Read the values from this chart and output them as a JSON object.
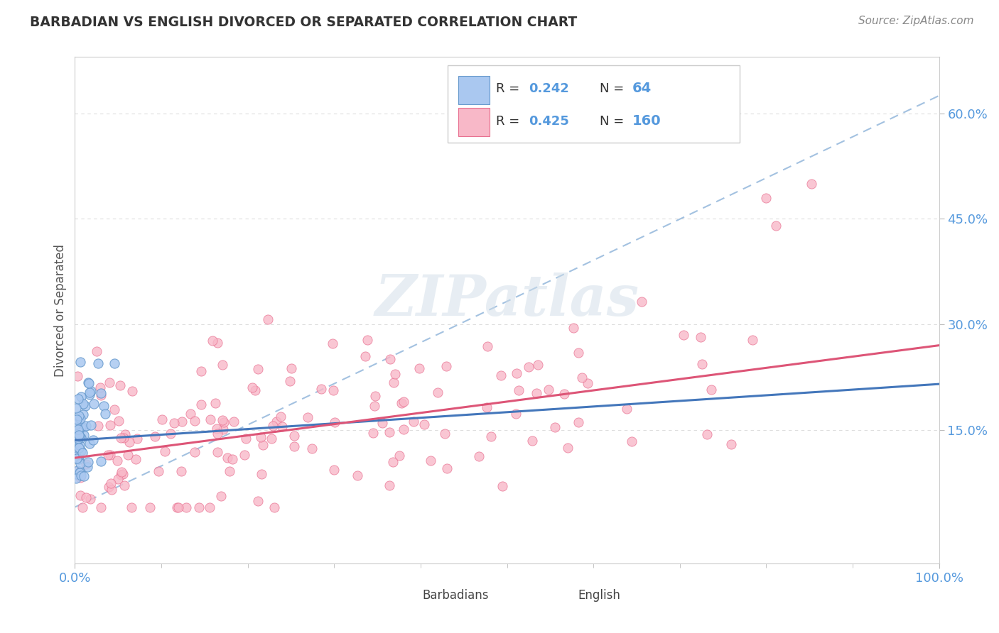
{
  "title": "BARBADIAN VS ENGLISH DIVORCED OR SEPARATED CORRELATION CHART",
  "source": "Source: ZipAtlas.com",
  "ylabel": "Divorced or Separated",
  "legend_R_blue": "0.242",
  "legend_N_blue": "64",
  "legend_R_pink": "0.425",
  "legend_N_pink": "160",
  "blue_fill": "#aac8f0",
  "blue_edge": "#6699cc",
  "pink_fill": "#f8b8c8",
  "pink_edge": "#e87090",
  "blue_line_color": "#4477bb",
  "pink_line_color": "#dd5577",
  "dash_line_color": "#99bbdd",
  "watermark_color": "#d0dde8",
  "title_color": "#333333",
  "source_color": "#888888",
  "tick_color": "#5599dd",
  "ylabel_color": "#555555",
  "grid_color": "#dddddd",
  "xlim": [
    0.0,
    1.0
  ],
  "ylim": [
    -0.04,
    0.68
  ],
  "yticks": [
    0.15,
    0.3,
    0.45,
    0.6
  ],
  "ytick_labels": [
    "15.0%",
    "30.0%",
    "45.0%",
    "60.0%"
  ],
  "blue_line_x": [
    0.0,
    1.0
  ],
  "blue_line_y": [
    0.135,
    0.215
  ],
  "pink_line_x": [
    0.0,
    1.0
  ],
  "pink_line_y": [
    0.11,
    0.27
  ],
  "dash_line_x": [
    0.0,
    1.0
  ],
  "dash_line_y": [
    0.04,
    0.625
  ]
}
